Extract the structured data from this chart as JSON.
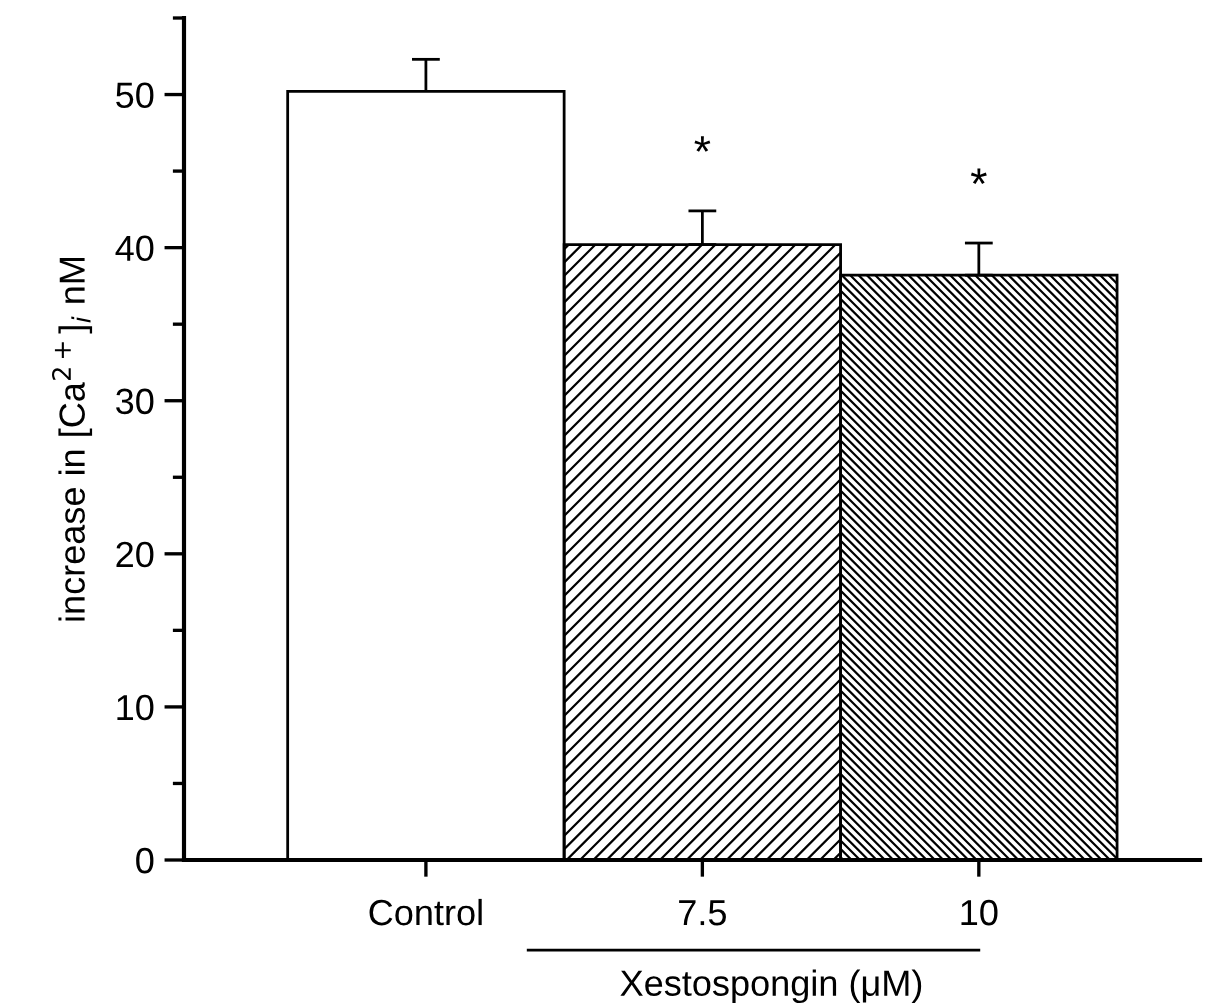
{
  "chart_data": {
    "type": "bar",
    "categories": [
      "Control",
      "7.5",
      "10"
    ],
    "values": [
      50.2,
      40.2,
      38.2
    ],
    "errors": [
      2.1,
      2.2,
      2.1
    ],
    "colors": [
      "#ffffff",
      "#000000",
      "#000000"
    ],
    "ylabel": "increase in [Ca$^{2+}$]$_{i}$ nM",
    "xlabel": "Xestospongin (μM)",
    "ylim": [
      0,
      55
    ],
    "yticks": [
      0,
      10,
      20,
      30,
      40,
      50
    ],
    "annotations": [
      "*",
      "*"
    ],
    "grid": false,
    "legend": false
  }
}
